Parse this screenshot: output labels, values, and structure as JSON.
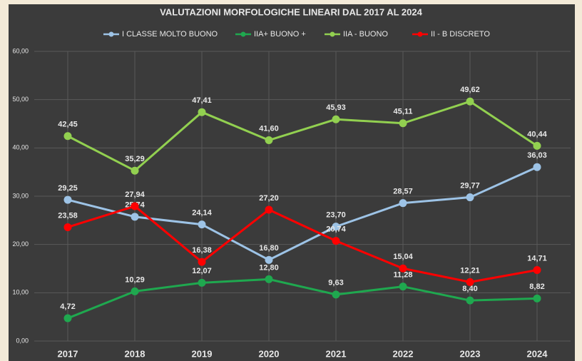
{
  "chart_data": {
    "type": "line",
    "title": "VALUTAZIONI MORFOLOGICHE LINEARI DAL 2017 AL 2024",
    "categories": [
      "2017",
      "2018",
      "2019",
      "2020",
      "2021",
      "2022",
      "2023",
      "2024"
    ],
    "series": [
      {
        "name": "I CLASSE MOLTO BUONO",
        "color": "#9dc3e6",
        "values": [
          29.25,
          25.74,
          24.14,
          16.8,
          23.7,
          28.57,
          29.77,
          36.03
        ],
        "value_labels": [
          "29,25",
          "25,74",
          "24,14",
          "16,80",
          "23,70",
          "28,57",
          "29,77",
          "36,03"
        ]
      },
      {
        "name": "IIA+ BUONO +",
        "color": "#1fa84f",
        "values": [
          4.72,
          10.29,
          12.07,
          12.8,
          9.63,
          11.28,
          8.4,
          8.82
        ],
        "value_labels": [
          "4,72",
          "10,29",
          "12,07",
          "12,80",
          "9,63",
          "11,28",
          "8,40",
          "8,82"
        ]
      },
      {
        "name": "IIA - BUONO",
        "color": "#92d050",
        "values": [
          42.45,
          35.29,
          47.41,
          41.6,
          45.93,
          45.11,
          49.62,
          40.44
        ],
        "value_labels": [
          "42,45",
          "35,29",
          "47,41",
          "41,60",
          "45,93",
          "45,11",
          "49,62",
          "40,44"
        ]
      },
      {
        "name": "II - B DISCRETO",
        "color": "#ff0000",
        "values": [
          23.58,
          27.94,
          16.38,
          27.2,
          20.74,
          15.04,
          12.21,
          14.71
        ],
        "value_labels": [
          "23,58",
          "27,94",
          "16,38",
          "27,20",
          "20,74",
          "15,04",
          "12,21",
          "14,71"
        ]
      }
    ],
    "ylim": [
      0,
      60
    ],
    "yticks": [
      {
        "value": 0,
        "label": "0,00"
      },
      {
        "value": 10,
        "label": "10,00"
      },
      {
        "value": 20,
        "label": "20,00"
      },
      {
        "value": 30,
        "label": "30,00"
      },
      {
        "value": 40,
        "label": "40,00"
      },
      {
        "value": 50,
        "label": "50,00"
      },
      {
        "value": 60,
        "label": "60,00"
      }
    ],
    "grid": true,
    "legend": "top"
  }
}
